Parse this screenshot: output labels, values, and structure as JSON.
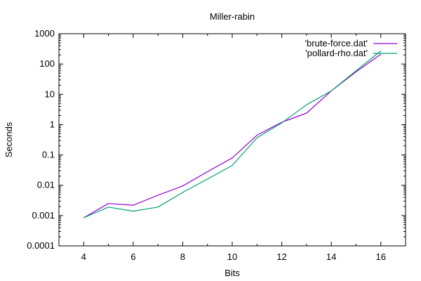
{
  "chart_data": {
    "type": "line",
    "title": "Miller-rabin",
    "xlabel": "Bits",
    "ylabel": "Seconds",
    "xlim": [
      3,
      17
    ],
    "ylim": [
      0.0001,
      1000
    ],
    "y_scale": "log",
    "x_ticks": [
      4,
      6,
      8,
      10,
      12,
      14,
      16
    ],
    "x_tick_labels": [
      "4",
      "6",
      "8",
      "10",
      "12",
      "14",
      "16"
    ],
    "y_ticks": [
      0.0001,
      0.001,
      0.01,
      0.1,
      1,
      10,
      100,
      1000
    ],
    "y_tick_labels": [
      "0.0001",
      "0.001",
      "0.01",
      "0.1",
      "1",
      "10",
      "100",
      "1000"
    ],
    "grid": false,
    "legend_position": "top-right",
    "series": [
      {
        "name": "'brute-force.dat'",
        "color": "#9400d3",
        "x": [
          4,
          5,
          6,
          7,
          8,
          9,
          10,
          11,
          12,
          13,
          14,
          15,
          16
        ],
        "y": [
          0.00085,
          0.0025,
          0.0022,
          0.0047,
          0.0095,
          0.028,
          0.08,
          0.45,
          1.2,
          2.4,
          13,
          55,
          210
        ]
      },
      {
        "name": "'pollard-rho.dat'",
        "color": "#009e73",
        "x": [
          4,
          5,
          6,
          7,
          8,
          9,
          10,
          11,
          12,
          13,
          14,
          15,
          16
        ],
        "y": [
          0.00085,
          0.0019,
          0.0014,
          0.0019,
          0.0058,
          0.016,
          0.045,
          0.37,
          1.15,
          4.5,
          13,
          60,
          270
        ]
      }
    ]
  }
}
